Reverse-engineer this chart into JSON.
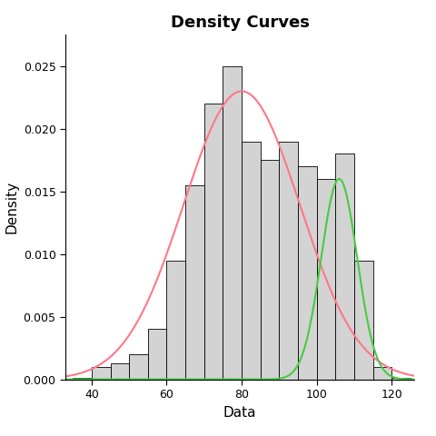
{
  "title": "Density Curves",
  "xlabel": "Data",
  "ylabel": "Density",
  "xlim": [
    33,
    126
  ],
  "ylim": [
    0,
    0.0275
  ],
  "yticks": [
    0.0,
    0.005,
    0.01,
    0.015,
    0.02,
    0.025
  ],
  "xticks": [
    40,
    60,
    80,
    100,
    120
  ],
  "bar_color": "#d3d3d3",
  "bar_edge_color": "#000000",
  "bar_linewidth": 0.6,
  "hist_bins_left": [
    35,
    40,
    45,
    50,
    55,
    60,
    65,
    70,
    75,
    80,
    85,
    90,
    95,
    100,
    105,
    110,
    115,
    120
  ],
  "hist_heights": [
    0.0001,
    0.001,
    0.0013,
    0.002,
    0.004,
    0.0095,
    0.0155,
    0.022,
    0.025,
    0.019,
    0.0175,
    0.019,
    0.017,
    0.016,
    0.018,
    0.0095,
    0.001,
    0.0001
  ],
  "bin_width": 5,
  "red_curve_mean": 80.0,
  "red_curve_std": 15.5,
  "red_curve_amplitude": 0.023,
  "green_curve_mean": 106.0,
  "green_curve_std": 4.8,
  "green_curve_amplitude": 0.016,
  "red_color": "#ff7788",
  "green_color": "#44cc44",
  "curve_linewidth": 1.5,
  "background_color": "#ffffff",
  "title_fontsize": 13,
  "title_fontweight": "bold",
  "label_fontsize": 11,
  "tick_fontsize": 9,
  "figsize": [
    4.8,
    4.8
  ],
  "dpi": 100
}
